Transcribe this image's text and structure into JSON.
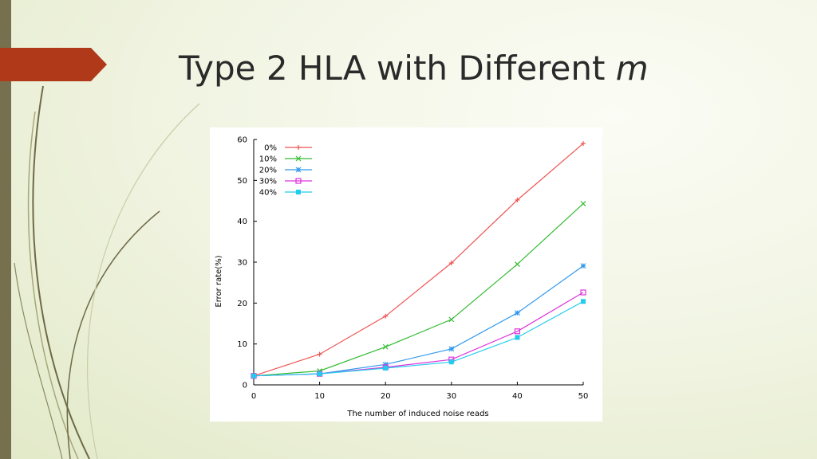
{
  "slide": {
    "title_text": "Type 2 HLA with Different ",
    "title_italic": "m"
  },
  "colors": {
    "left_bar": "#77704f",
    "title_arrow": "#b0391a"
  },
  "chart_data": {
    "type": "line",
    "title": "",
    "xlabel": "The number of induced noise reads",
    "ylabel": "Error rate(%)",
    "x": [
      0,
      10,
      20,
      30,
      40,
      50
    ],
    "xlim": [
      0,
      50
    ],
    "ylim": [
      0,
      60
    ],
    "xticks": [
      0,
      10,
      20,
      30,
      40,
      50
    ],
    "yticks": [
      0,
      10,
      20,
      30,
      40,
      50,
      60
    ],
    "grid": false,
    "legend_position": "top-left",
    "series": [
      {
        "name": "0%",
        "marker": "plus",
        "color": "#ee5555",
        "values": [
          2.2,
          7.5,
          16.8,
          29.8,
          45.2,
          59.0
        ]
      },
      {
        "name": "10%",
        "marker": "cross",
        "color": "#33bb33",
        "values": [
          2.2,
          3.4,
          9.3,
          16.0,
          29.5,
          44.3
        ]
      },
      {
        "name": "20%",
        "marker": "star",
        "color": "#3399ee",
        "values": [
          2.2,
          2.7,
          5.0,
          8.8,
          17.6,
          29.1
        ]
      },
      {
        "name": "30%",
        "marker": "open-square",
        "color": "#dd33dd",
        "values": [
          2.2,
          2.7,
          4.3,
          6.2,
          13.1,
          22.6
        ]
      },
      {
        "name": "40%",
        "marker": "filled-square",
        "color": "#22ccee",
        "values": [
          2.2,
          2.7,
          4.1,
          5.6,
          11.6,
          20.4
        ]
      }
    ]
  }
}
